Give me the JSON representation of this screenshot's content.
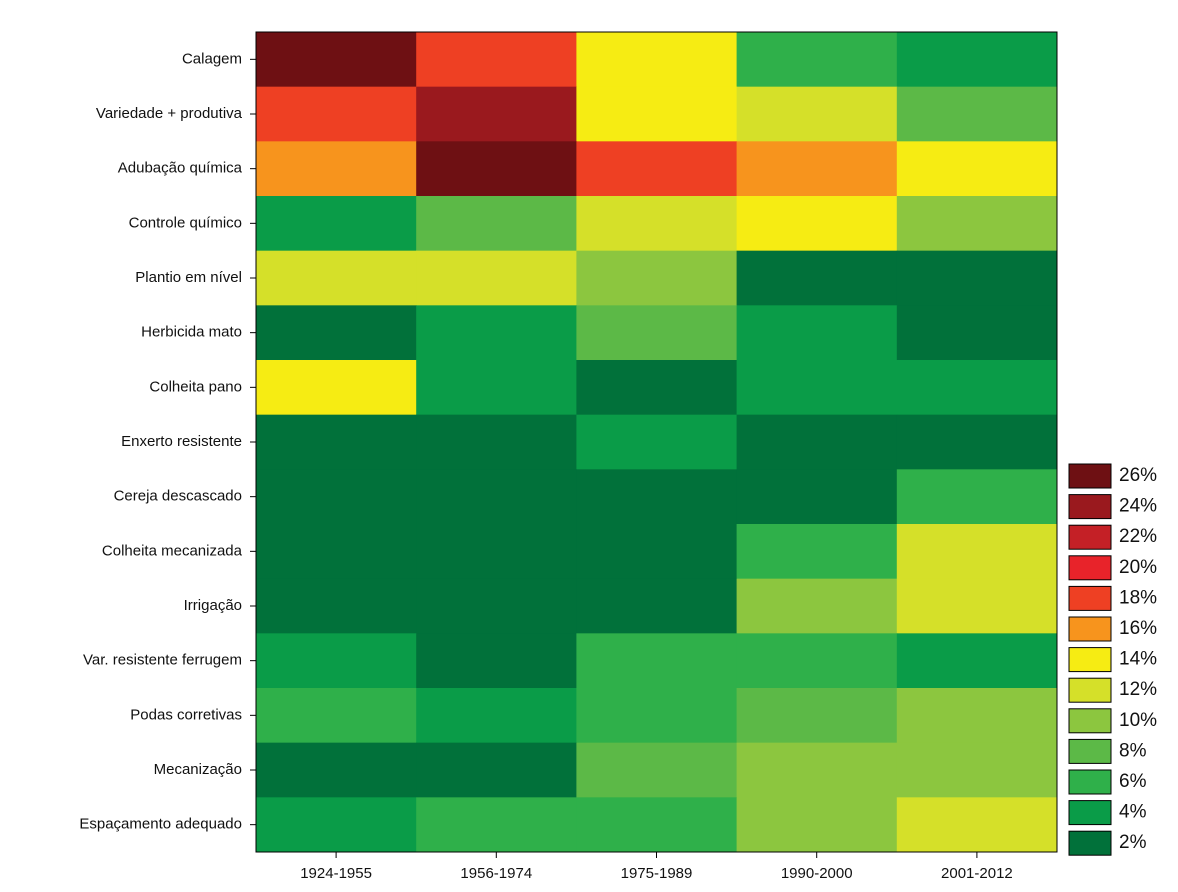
{
  "chart_data": {
    "type": "heatmap",
    "categories": [
      "1924-1955",
      "1956-1974",
      "1975-1989",
      "1990-2000",
      "2001-2012"
    ],
    "rows": [
      "Calagem",
      "Variedade + produtiva",
      "Adubação química",
      "Controle químico",
      "Plantio em nível",
      "Herbicida mato",
      "Colheita pano",
      "Enxerto resistente",
      "Cereja descascado",
      "Colheita mecanizada",
      "Irrigação",
      "Var. resistente ferrugem",
      "Podas corretivas",
      "Mecanização",
      "Espaçamento adequado"
    ],
    "values": [
      [
        26,
        18,
        14,
        6,
        4
      ],
      [
        18,
        24,
        14,
        12,
        8
      ],
      [
        16,
        26,
        18,
        16,
        14
      ],
      [
        4,
        8,
        12,
        14,
        10
      ],
      [
        12,
        12,
        10,
        2,
        2
      ],
      [
        2,
        4,
        8,
        4,
        2
      ],
      [
        14,
        4,
        2,
        4,
        4
      ],
      [
        2,
        2,
        4,
        2,
        2
      ],
      [
        2,
        2,
        2,
        2,
        6
      ],
      [
        2,
        2,
        2,
        6,
        12
      ],
      [
        2,
        2,
        2,
        10,
        12
      ],
      [
        4,
        2,
        6,
        6,
        4
      ],
      [
        6,
        4,
        6,
        8,
        10
      ],
      [
        2,
        2,
        8,
        10,
        10
      ],
      [
        4,
        6,
        6,
        10,
        12
      ]
    ],
    "colorscale": [
      {
        "value": 26,
        "label": "26%",
        "color": "#6e1013"
      },
      {
        "value": 24,
        "label": "24%",
        "color": "#9a191e"
      },
      {
        "value": 22,
        "label": "22%",
        "color": "#c42026"
      },
      {
        "value": 20,
        "label": "20%",
        "color": "#e8232a"
      },
      {
        "value": 18,
        "label": "18%",
        "color": "#ee4023"
      },
      {
        "value": 16,
        "label": "16%",
        "color": "#f7941d"
      },
      {
        "value": 14,
        "label": "14%",
        "color": "#f6ec13"
      },
      {
        "value": 12,
        "label": "12%",
        "color": "#d5e029"
      },
      {
        "value": 10,
        "label": "10%",
        "color": "#8cc63f"
      },
      {
        "value": 8,
        "label": "8%",
        "color": "#5cb947"
      },
      {
        "value": 6,
        "label": "6%",
        "color": "#2fb04a"
      },
      {
        "value": 4,
        "label": "4%",
        "color": "#0a9c48"
      },
      {
        "value": 2,
        "label": "2%",
        "color": "#01713a"
      }
    ]
  }
}
